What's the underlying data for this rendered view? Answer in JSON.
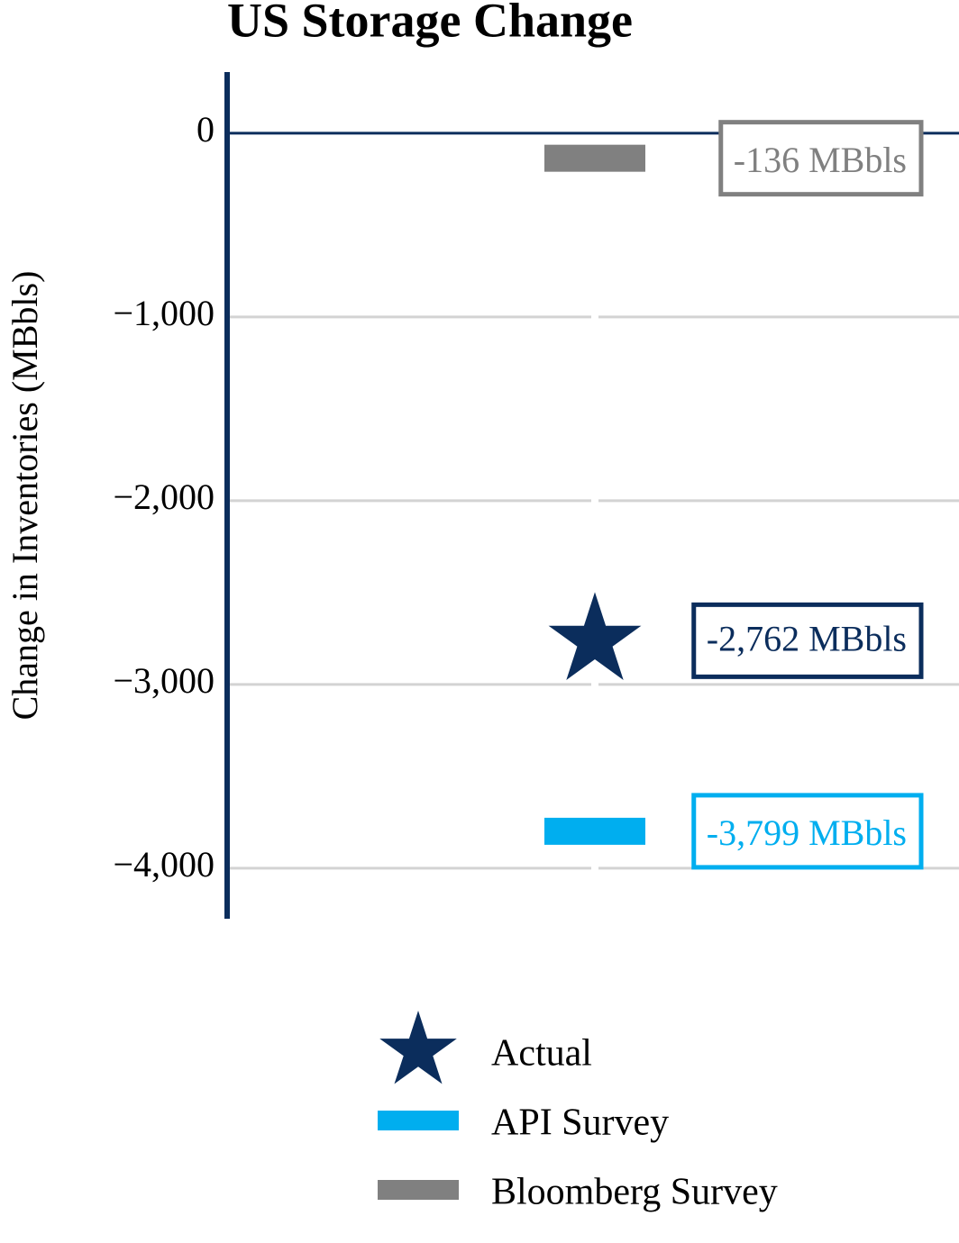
{
  "chart_data": {
    "type": "scatter",
    "title": "US Storage Change",
    "y_label": "Change in Inventories (MBbls)",
    "categories": [
      null
    ],
    "ylim": [
      -4275,
      333
    ],
    "yticks": [
      0,
      {
        "value": -1000,
        "label": "−1,000"
      },
      {
        "value": -2000,
        "label": "−2,000"
      },
      {
        "value": -3000,
        "label": "−3,000"
      },
      {
        "value": -4000,
        "label": "−4,000"
      }
    ],
    "grid": true,
    "legend": "bottom",
    "series": [
      {
        "name": "Actual",
        "color": "#0b2d5c",
        "marker": "star",
        "values": [
          -2762
        ],
        "value_labels": [
          "-2,762 MBbls"
        ]
      },
      {
        "name": "API Survey",
        "color": "#00aeef",
        "marker": "dash",
        "values": [
          -3799
        ],
        "value_labels": [
          "-3,799 MBbls"
        ]
      },
      {
        "name": "Bloomberg Survey",
        "color": "#808080",
        "marker": "dash",
        "values": [
          -136
        ],
        "value_labels": [
          "-136 MBbls"
        ]
      }
    ]
  }
}
